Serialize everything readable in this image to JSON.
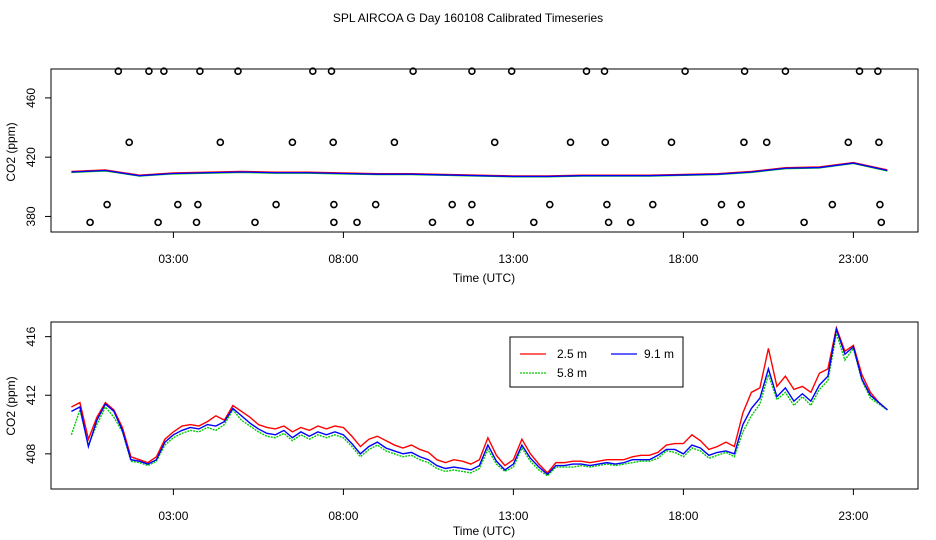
{
  "title": "SPL AIRCOA G  Day 160108  Calibrated Timeseries",
  "chart_data": [
    {
      "type": "scatter",
      "title": "",
      "xlabel": "Time (UTC)",
      "ylabel": "CO2 (ppm)",
      "xunit": "hours UTC",
      "xlim": [
        -0.6,
        24.9
      ],
      "ylim": [
        369.5,
        479.5
      ],
      "xticks": [
        3,
        8,
        13,
        18,
        23
      ],
      "xtick_labels": [
        "03:00",
        "08:00",
        "13:00",
        "18:00",
        "23:00"
      ],
      "yticks": [
        380,
        420,
        460
      ],
      "ytick_labels": [
        "380",
        "420",
        "460"
      ],
      "calibration_points": {
        "marker": "open-circle",
        "x": [
          1.38,
          2.28,
          2.72,
          3.78,
          4.9,
          7.1,
          7.65,
          10.05,
          11.78,
          12.95,
          15.15,
          15.68,
          18.05,
          19.8,
          21.0,
          23.18,
          23.72,
          1.7,
          4.38,
          6.5,
          7.7,
          9.5,
          12.45,
          14.68,
          15.7,
          17.65,
          19.78,
          20.45,
          22.85,
          23.75,
          1.05,
          3.13,
          3.72,
          6.02,
          7.72,
          8.95,
          11.2,
          11.78,
          14.07,
          15.75,
          17.1,
          19.12,
          19.7,
          22.38,
          23.78,
          0.55,
          2.55,
          3.68,
          5.4,
          7.72,
          8.4,
          10.62,
          11.73,
          13.6,
          15.8,
          16.45,
          18.62,
          19.68,
          21.55,
          23.82
        ],
        "y": [
          478,
          478,
          478,
          478,
          478,
          478,
          478,
          478,
          478,
          478,
          478,
          478,
          478,
          478,
          478,
          478,
          478,
          430,
          430,
          430,
          430,
          430,
          430,
          430,
          430,
          430,
          430,
          430,
          430,
          430,
          388,
          388,
          388,
          388,
          388,
          388,
          388,
          388,
          388,
          388,
          388,
          388,
          388,
          388,
          388,
          376,
          376,
          376,
          376,
          376,
          376,
          376,
          376,
          376,
          376,
          376,
          376,
          376,
          376,
          376
        ]
      },
      "series": [
        {
          "name": "2.5 m",
          "color": "#ff0000"
        },
        {
          "name": "5.8 m",
          "color": "#00cc00"
        },
        {
          "name": "9.1 m",
          "color": "#0000ff"
        }
      ],
      "x": [
        0.0,
        1.0,
        2.0,
        3.0,
        4.0,
        5.0,
        6.0,
        7.0,
        8.0,
        9.0,
        10.0,
        11.0,
        12.0,
        13.0,
        14.0,
        15.0,
        16.0,
        17.0,
        18.0,
        19.0,
        20.0,
        21.0,
        22.0,
        23.0,
        24.0
      ],
      "y": [
        410.0,
        411.0,
        407.5,
        409.0,
        409.5,
        410.0,
        409.5,
        409.5,
        409.0,
        408.5,
        408.5,
        408.0,
        407.5,
        407.0,
        407.0,
        407.5,
        407.5,
        407.5,
        408.0,
        408.5,
        410.0,
        412.5,
        413.0,
        416.0,
        411.0
      ]
    },
    {
      "type": "line",
      "title": "",
      "xlabel": "Time (UTC)",
      "ylabel": "CO2 (ppm)",
      "xunit": "hours UTC",
      "xlim": [
        -0.6,
        24.9
      ],
      "ylim": [
        405.6,
        417.0
      ],
      "xticks": [
        3,
        8,
        13,
        18,
        23
      ],
      "xtick_labels": [
        "03:00",
        "08:00",
        "13:00",
        "18:00",
        "23:00"
      ],
      "yticks": [
        408,
        412,
        416
      ],
      "ytick_labels": [
        "408",
        "412",
        "416"
      ],
      "legend": {
        "position": "top-center",
        "ncol": 2
      },
      "x": [
        0.0,
        0.25,
        0.5,
        0.75,
        1.0,
        1.25,
        1.5,
        1.75,
        2.0,
        2.25,
        2.5,
        2.75,
        3.0,
        3.25,
        3.5,
        3.75,
        4.0,
        4.25,
        4.5,
        4.75,
        5.0,
        5.25,
        5.5,
        5.75,
        6.0,
        6.25,
        6.5,
        6.75,
        7.0,
        7.25,
        7.5,
        7.75,
        8.0,
        8.25,
        8.5,
        8.75,
        9.0,
        9.25,
        9.5,
        9.75,
        10.0,
        10.25,
        10.5,
        10.75,
        11.0,
        11.25,
        11.5,
        11.75,
        12.0,
        12.25,
        12.5,
        12.75,
        13.0,
        13.25,
        13.5,
        13.75,
        14.0,
        14.25,
        14.5,
        14.75,
        15.0,
        15.25,
        15.5,
        15.75,
        16.0,
        16.25,
        16.5,
        16.75,
        17.0,
        17.25,
        17.5,
        17.75,
        18.0,
        18.25,
        18.5,
        18.75,
        19.0,
        19.25,
        19.5,
        19.75,
        20.0,
        20.25,
        20.5,
        20.75,
        21.0,
        21.25,
        21.5,
        21.75,
        22.0,
        22.25,
        22.5,
        22.75,
        23.0,
        23.25,
        23.5,
        23.75,
        24.0
      ],
      "series": [
        {
          "name": "2.5 m",
          "color": "#ff0000",
          "values": [
            411.2,
            411.5,
            409.0,
            410.5,
            411.5,
            411.0,
            409.8,
            407.8,
            407.6,
            407.4,
            407.8,
            409.0,
            409.5,
            409.9,
            410.0,
            409.9,
            410.2,
            410.6,
            410.3,
            411.3,
            410.9,
            410.5,
            410.0,
            409.8,
            409.7,
            409.9,
            409.5,
            409.8,
            409.6,
            409.9,
            409.7,
            409.9,
            409.8,
            409.2,
            408.5,
            409.0,
            409.2,
            408.9,
            408.6,
            408.4,
            408.6,
            408.3,
            408.1,
            407.6,
            407.4,
            407.6,
            407.5,
            407.3,
            407.6,
            409.1,
            407.9,
            407.2,
            407.6,
            409.0,
            408.0,
            407.3,
            406.7,
            407.4,
            407.4,
            407.5,
            407.5,
            407.4,
            407.5,
            407.6,
            407.6,
            407.6,
            407.8,
            407.9,
            407.9,
            408.1,
            408.6,
            408.7,
            408.7,
            409.3,
            408.9,
            408.3,
            408.5,
            408.8,
            408.5,
            410.8,
            412.2,
            412.5,
            415.2,
            412.6,
            413.3,
            412.4,
            412.6,
            412.2,
            413.5,
            413.8,
            416.6,
            415.0,
            415.4,
            413.4,
            412.2,
            411.5,
            411.0
          ]
        },
        {
          "name": "5.8 m",
          "color": "#00cc00",
          "values": [
            409.3,
            411.0,
            408.6,
            410.0,
            411.2,
            410.5,
            409.5,
            407.5,
            407.4,
            407.2,
            407.5,
            408.6,
            409.1,
            409.4,
            409.6,
            409.5,
            409.8,
            409.6,
            410.0,
            411.0,
            410.3,
            409.9,
            409.5,
            409.2,
            409.1,
            409.4,
            408.9,
            409.3,
            409.0,
            409.3,
            409.1,
            409.3,
            409.1,
            408.5,
            407.8,
            408.3,
            408.6,
            408.2,
            408.0,
            407.8,
            407.9,
            407.6,
            407.4,
            407.0,
            406.8,
            406.9,
            406.8,
            406.7,
            407.0,
            408.3,
            407.3,
            406.8,
            407.1,
            408.4,
            407.5,
            406.9,
            406.5,
            407.1,
            407.1,
            407.1,
            407.2,
            407.1,
            407.2,
            407.3,
            407.2,
            407.3,
            407.4,
            407.5,
            407.5,
            407.7,
            408.2,
            408.1,
            407.8,
            408.4,
            408.2,
            407.7,
            407.9,
            408.1,
            407.8,
            409.5,
            410.6,
            411.4,
            413.4,
            411.7,
            412.2,
            411.3,
            411.9,
            411.3,
            412.4,
            413.0,
            416.2,
            414.4,
            415.2,
            413.0,
            411.8,
            411.4,
            411.0
          ]
        },
        {
          "name": "9.1 m",
          "color": "#0000ff",
          "values": [
            410.9,
            411.2,
            408.5,
            410.3,
            411.4,
            410.9,
            409.6,
            407.6,
            407.5,
            407.3,
            407.6,
            408.8,
            409.3,
            409.6,
            409.8,
            409.7,
            410.0,
            409.9,
            410.2,
            411.1,
            410.6,
            410.1,
            409.7,
            409.4,
            409.3,
            409.6,
            409.1,
            409.5,
            409.2,
            409.5,
            409.3,
            409.5,
            409.3,
            408.7,
            408.0,
            408.5,
            408.8,
            408.4,
            408.2,
            408.0,
            408.1,
            407.8,
            407.6,
            407.2,
            407.0,
            407.1,
            407.0,
            406.9,
            407.2,
            408.6,
            407.5,
            406.9,
            407.3,
            408.6,
            407.7,
            407.1,
            406.6,
            407.2,
            407.2,
            407.3,
            407.3,
            407.2,
            407.3,
            407.4,
            407.3,
            407.4,
            407.6,
            407.6,
            407.6,
            407.9,
            408.3,
            408.3,
            408.0,
            408.6,
            408.4,
            407.9,
            408.1,
            408.2,
            408.0,
            410.0,
            411.1,
            411.8,
            413.8,
            411.9,
            412.5,
            411.6,
            412.1,
            411.6,
            412.7,
            413.3,
            416.5,
            414.8,
            415.3,
            413.1,
            412.0,
            411.5,
            411.0
          ]
        }
      ]
    }
  ]
}
